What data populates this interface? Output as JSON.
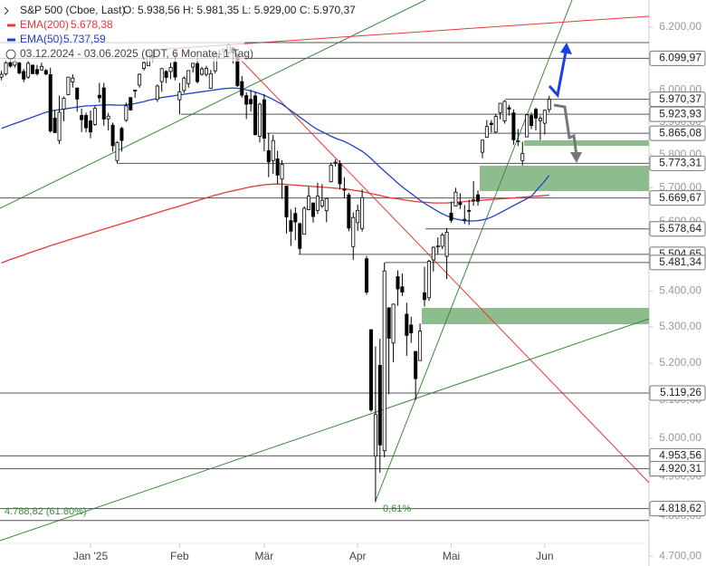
{
  "chart_data": {
    "type": "candlestick",
    "title": "S&P 500 (Cboe, Last)",
    "ohlc_text": "O: 5.938,56  H: 5.981,35  L: 5.929,00  C: 5.970,37",
    "period": "03.12.2024 - 03.06.2025  (CDT, 6 Monate, 1 Tag)",
    "log_scale": true,
    "ylim": [
      4676,
      6289
    ],
    "yticks": [
      {
        "value": 4700,
        "label": "4.700,00"
      },
      {
        "value": 4800,
        "label": "4.800,00"
      },
      {
        "value": 4900,
        "label": "4.900,00"
      },
      {
        "value": 5000,
        "label": "5.000,00"
      },
      {
        "value": 5100,
        "label": "5.100,00"
      },
      {
        "value": 5200,
        "label": "5.200,00"
      },
      {
        "value": 5300,
        "label": "5.300,00"
      },
      {
        "value": 5400,
        "label": "5.400,00"
      },
      {
        "value": 5500,
        "label": "5.500,00"
      },
      {
        "value": 5600,
        "label": "5.600,00"
      },
      {
        "value": 5700,
        "label": "5.700,00"
      },
      {
        "value": 5800,
        "label": "5.800,00"
      },
      {
        "value": 5900,
        "label": "5.900,00"
      },
      {
        "value": 6000,
        "label": "6.000,00"
      },
      {
        "value": 6100,
        "label": "6.100,00"
      },
      {
        "value": 6200,
        "label": "6.200,00"
      }
    ],
    "xticks": [
      {
        "value": 20,
        "label": "Jan '25"
      },
      {
        "value": 40,
        "label": "Feb"
      },
      {
        "value": 59,
        "label": "Mär"
      },
      {
        "value": 80,
        "label": "Apr"
      },
      {
        "value": 101,
        "label": "Mai"
      },
      {
        "value": 122,
        "label": "Jun"
      }
    ],
    "up_color": "#ffffff",
    "down_color": "#000000",
    "candles": [
      [
        6040,
        6060,
        6030,
        6049
      ],
      [
        6050,
        6092,
        6045,
        6086
      ],
      [
        6086,
        6099,
        6070,
        6075
      ],
      [
        6078,
        6100,
        6070,
        6090
      ],
      [
        6085,
        6088,
        6048,
        6053
      ],
      [
        6058,
        6066,
        6024,
        6034
      ],
      [
        6040,
        6093,
        6035,
        6084
      ],
      [
        6078,
        6080,
        6050,
        6051
      ],
      [
        6064,
        6079,
        6045,
        6051
      ],
      [
        6063,
        6086,
        6060,
        6074
      ],
      [
        6061,
        6066,
        6046,
        6050
      ],
      [
        6048,
        6070,
        5867,
        5872
      ],
      [
        5912,
        5935,
        5866,
        5867
      ],
      [
        5843,
        5982,
        5832,
        5930
      ],
      [
        5940,
        5979,
        5902,
        5974
      ],
      [
        5985,
        6041,
        5983,
        6040
      ],
      [
        6025,
        6049,
        6007,
        6037
      ],
      [
        6006,
        6006,
        5932,
        5971
      ],
      [
        5920,
        5941,
        5869,
        5907
      ],
      [
        5920,
        5929,
        5868,
        5882
      ],
      [
        5903,
        5935,
        5850,
        5869
      ],
      [
        5892,
        5949,
        5888,
        5942
      ],
      [
        5983,
        6022,
        5960,
        5975
      ],
      [
        6006,
        6022,
        5888,
        5909
      ],
      [
        5910,
        5928,
        5874,
        5918
      ],
      [
        5890,
        5898,
        5809,
        5827
      ],
      [
        5782,
        5841,
        5773,
        5837
      ],
      [
        5880,
        5885,
        5810,
        5843
      ],
      [
        5905,
        5960,
        5900,
        5950
      ],
      [
        5976,
        5976,
        5935,
        5937
      ],
      [
        5999,
        6000,
        5975,
        5997
      ],
      [
        6015,
        6052,
        6007,
        6049
      ],
      [
        6068,
        6091,
        6061,
        6086
      ],
      [
        6076,
        6118,
        6075,
        6119
      ],
      [
        6121,
        6128,
        6088,
        6101
      ],
      [
        5970,
        6017,
        5962,
        6012
      ],
      [
        6026,
        6069,
        5994,
        6067
      ],
      [
        6058,
        6062,
        6021,
        6039
      ],
      [
        6058,
        6086,
        6034,
        6071
      ],
      [
        6087,
        6120,
        6030,
        6040
      ],
      [
        5969,
        6022,
        5923,
        5994
      ],
      [
        5998,
        6042,
        5990,
        6037
      ],
      [
        6020,
        6062,
        6007,
        6061
      ],
      [
        6072,
        6084,
        6054,
        6084
      ],
      [
        6083,
        6101,
        6020,
        6026
      ],
      [
        6049,
        6073,
        6045,
        6066
      ],
      [
        6049,
        6076,
        6042,
        6068
      ],
      [
        6005,
        6063,
        6003,
        6051
      ],
      [
        6060,
        6117,
        6052,
        6115
      ],
      [
        6115,
        6128,
        6108,
        6115
      ],
      [
        6121,
        6129,
        6099,
        6129
      ],
      [
        6118,
        6147,
        6111,
        6144
      ],
      [
        6134,
        6134,
        6084,
        6117
      ],
      [
        6114,
        6115,
        6009,
        6013
      ],
      [
        6026,
        6044,
        5976,
        5983
      ],
      [
        5982,
        5992,
        5909,
        5955
      ],
      [
        5970,
        6000,
        5932,
        5956
      ],
      [
        5981,
        5994,
        5858,
        5861
      ],
      [
        5856,
        5959,
        5837,
        5955
      ],
      [
        5969,
        5987,
        5810,
        5850
      ],
      [
        5812,
        5866,
        5732,
        5778
      ],
      [
        5782,
        5860,
        5742,
        5843
      ],
      [
        5787,
        5812,
        5711,
        5738
      ],
      [
        5726,
        5783,
        5667,
        5770
      ],
      [
        5705,
        5705,
        5565,
        5614
      ],
      [
        5603,
        5636,
        5529,
        5572
      ],
      [
        5624,
        5642,
        5546,
        5599
      ],
      [
        5594,
        5597,
        5505,
        5522
      ],
      [
        5563,
        5645,
        5563,
        5639
      ],
      [
        5635,
        5703,
        5633,
        5675
      ],
      [
        5655,
        5656,
        5597,
        5615
      ],
      [
        5633,
        5715,
        5622,
        5675
      ],
      [
        5646,
        5711,
        5640,
        5663
      ],
      [
        5632,
        5670,
        5598,
        5668
      ],
      [
        5718,
        5776,
        5716,
        5768
      ],
      [
        5775,
        5786,
        5764,
        5777
      ],
      [
        5772,
        5783,
        5695,
        5712
      ],
      [
        5696,
        5732,
        5670,
        5693
      ],
      [
        5679,
        5685,
        5572,
        5581
      ],
      [
        5527,
        5627,
        5489,
        5612
      ],
      [
        5597,
        5650,
        5573,
        5633
      ],
      [
        5580,
        5695,
        5571,
        5671
      ],
      [
        5492,
        5500,
        5390,
        5397
      ],
      [
        5292,
        5292,
        5069,
        5074
      ],
      [
        4953,
        5246,
        4835,
        5062
      ],
      [
        5194,
        5267,
        4910,
        4982
      ],
      [
        4967,
        5481,
        4950,
        5457
      ],
      [
        5353,
        5353,
        5116,
        5268
      ],
      [
        5255,
        5365,
        5203,
        5363
      ],
      [
        5441,
        5459,
        5359,
        5406
      ],
      [
        5412,
        5450,
        5386,
        5397
      ],
      [
        5335,
        5367,
        5220,
        5276
      ],
      [
        5305,
        5328,
        5255,
        5283
      ],
      [
        5232,
        5232,
        5101,
        5158
      ],
      [
        5207,
        5309,
        5207,
        5288
      ],
      [
        5395,
        5469,
        5356,
        5376
      ],
      [
        5381,
        5489,
        5372,
        5485
      ],
      [
        5489,
        5528,
        5456,
        5525
      ],
      [
        5529,
        5554,
        5505,
        5529
      ],
      [
        5528,
        5567,
        5520,
        5561
      ],
      [
        5499,
        5581,
        5434,
        5569
      ],
      [
        5625,
        5659,
        5597,
        5604
      ],
      [
        5646,
        5700,
        5645,
        5687
      ],
      [
        5656,
        5684,
        5637,
        5650
      ],
      [
        5606,
        5649,
        5593,
        5607
      ],
      [
        5633,
        5664,
        5590,
        5631
      ],
      [
        5663,
        5720,
        5647,
        5664
      ],
      [
        5679,
        5692,
        5647,
        5660
      ],
      [
        5807,
        5845,
        5789,
        5844
      ],
      [
        5853,
        5906,
        5852,
        5886
      ],
      [
        5896,
        5906,
        5868,
        5892
      ],
      [
        5869,
        5925,
        5865,
        5917
      ],
      [
        5929,
        5958,
        5908,
        5958
      ],
      [
        5903,
        5968,
        5895,
        5964
      ],
      [
        5944,
        5953,
        5920,
        5940
      ],
      [
        5928,
        5939,
        5830,
        5845
      ],
      [
        5842,
        5878,
        5826,
        5842
      ],
      [
        5782,
        5839,
        5767,
        5803
      ],
      [
        5854,
        5924,
        5854,
        5922
      ],
      [
        5920,
        5929,
        5878,
        5889
      ],
      [
        5939,
        5944,
        5874,
        5912
      ],
      [
        5904,
        5920,
        5844,
        5912
      ],
      [
        5896,
        5939,
        5861,
        5936
      ],
      [
        5938.56,
        5981.35,
        5929,
        5970.37
      ]
    ],
    "series": [
      {
        "name": "EMA(200)",
        "legend_value": "5.678,38",
        "color": "#e53935",
        "values": [
          5480,
          5485,
          5490,
          5494,
          5499,
          5503,
          5508,
          5512,
          5517,
          5521,
          5525,
          5530,
          5534,
          5538,
          5542,
          5546,
          5550,
          5554,
          5558,
          5562,
          5566,
          5570,
          5574,
          5578,
          5582,
          5586,
          5590,
          5594,
          5598,
          5602,
          5606,
          5610,
          5614,
          5618,
          5622,
          5626,
          5630,
          5634,
          5638,
          5642,
          5646,
          5650,
          5654,
          5658,
          5662,
          5666,
          5670,
          5674,
          5678,
          5681,
          5685,
          5688,
          5691,
          5694,
          5697,
          5700,
          5703,
          5705,
          5707,
          5709,
          5710,
          5711,
          5711,
          5711,
          5710,
          5709,
          5708,
          5707,
          5706,
          5705,
          5704,
          5703,
          5702,
          5701,
          5700,
          5699,
          5698,
          5697,
          5695,
          5693,
          5691,
          5689,
          5686,
          5683,
          5680,
          5677,
          5674,
          5671,
          5669,
          5667,
          5665,
          5663,
          5661,
          5659,
          5658,
          5657,
          5656,
          5655,
          5655,
          5655,
          5655,
          5656,
          5657,
          5658,
          5659,
          5660,
          5661,
          5662,
          5663,
          5664,
          5665,
          5666,
          5667,
          5668,
          5669,
          5670,
          5671,
          5672,
          5673,
          5674,
          5675,
          5676,
          5677,
          5678.38
        ]
      },
      {
        "name": "EMA(50)",
        "legend_value": "5.737,59",
        "color": "#1e40c8",
        "values": [
          5880,
          5885,
          5890,
          5895,
          5900,
          5905,
          5910,
          5915,
          5920,
          5925,
          5930,
          5933,
          5936,
          5938,
          5940,
          5942,
          5944,
          5946,
          5948,
          5950,
          5950,
          5951,
          5952,
          5953,
          5953,
          5953,
          5952,
          5952,
          5953,
          5955,
          5957,
          5960,
          5963,
          5967,
          5970,
          5973,
          5976,
          5978,
          5980,
          5982,
          5984,
          5986,
          5988,
          5990,
          5992,
          5994,
          5996,
          5998,
          6000,
          6002,
          6004,
          6005,
          6006,
          6005,
          6003,
          6000,
          5997,
          5993,
          5988,
          5983,
          5977,
          5970,
          5962,
          5955,
          5945,
          5935,
          5925,
          5915,
          5905,
          5895,
          5885,
          5877,
          5870,
          5863,
          5856,
          5850,
          5845,
          5840,
          5833,
          5826,
          5818,
          5810,
          5800,
          5788,
          5775,
          5762,
          5750,
          5738,
          5726,
          5714,
          5703,
          5693,
          5683,
          5673,
          5663,
          5654,
          5646,
          5638,
          5630,
          5623,
          5617,
          5612,
          5608,
          5605,
          5603,
          5602,
          5602,
          5603,
          5605,
          5608,
          5613,
          5619,
          5626,
          5633,
          5640,
          5647,
          5654,
          5661,
          5668,
          5675,
          5690,
          5705,
          5720,
          5737.59
        ]
      }
    ],
    "levels": [
      {
        "value": 6099.97,
        "label": "6.099,97"
      },
      {
        "value": 5970.37,
        "label": "5.970,37"
      },
      {
        "value": 5923.93,
        "label": "5.923,93"
      },
      {
        "value": 5865.08,
        "label": "5.865,08"
      },
      {
        "value": 5773.31,
        "label": "5.773,31"
      },
      {
        "value": 5669.67,
        "label": "5.669,67"
      },
      {
        "value": 5578.64,
        "label": "5.578,64"
      },
      {
        "value": 5504.65,
        "label": "5.504,65"
      },
      {
        "value": 5481.34,
        "label": "5.481,34"
      },
      {
        "value": 5119.26,
        "label": "5.119,26"
      },
      {
        "value": 4953.56,
        "label": "4.953,56"
      },
      {
        "value": 4920.31,
        "label": "4.920,31"
      },
      {
        "value": 4818.62,
        "label": "4.818,62"
      }
    ],
    "annotations": [
      {
        "value": 4788.82,
        "label": "4.788,82 (61.80%)"
      },
      {
        "label": "0,61%"
      }
    ]
  }
}
